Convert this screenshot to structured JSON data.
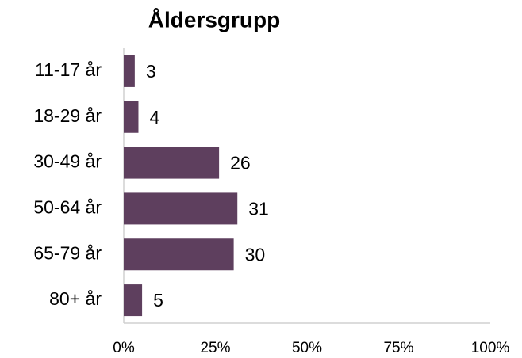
{
  "chart_data": {
    "type": "barh",
    "title": "Åldersgrupp",
    "categories": [
      "11-17 år",
      "18-29 år",
      "30-49 år",
      "50-64 år",
      "65-79 år",
      "80+ år"
    ],
    "values": [
      3,
      4,
      26,
      31,
      30,
      5
    ],
    "color": "#5e3f5e",
    "xlim": [
      0,
      100
    ],
    "xticks": [
      {
        "value": 0,
        "label": "0%"
      },
      {
        "value": 25,
        "label": "25%"
      },
      {
        "value": 50,
        "label": "50%"
      },
      {
        "value": 75,
        "label": "75%"
      },
      {
        "value": 100,
        "label": "100%"
      }
    ]
  }
}
